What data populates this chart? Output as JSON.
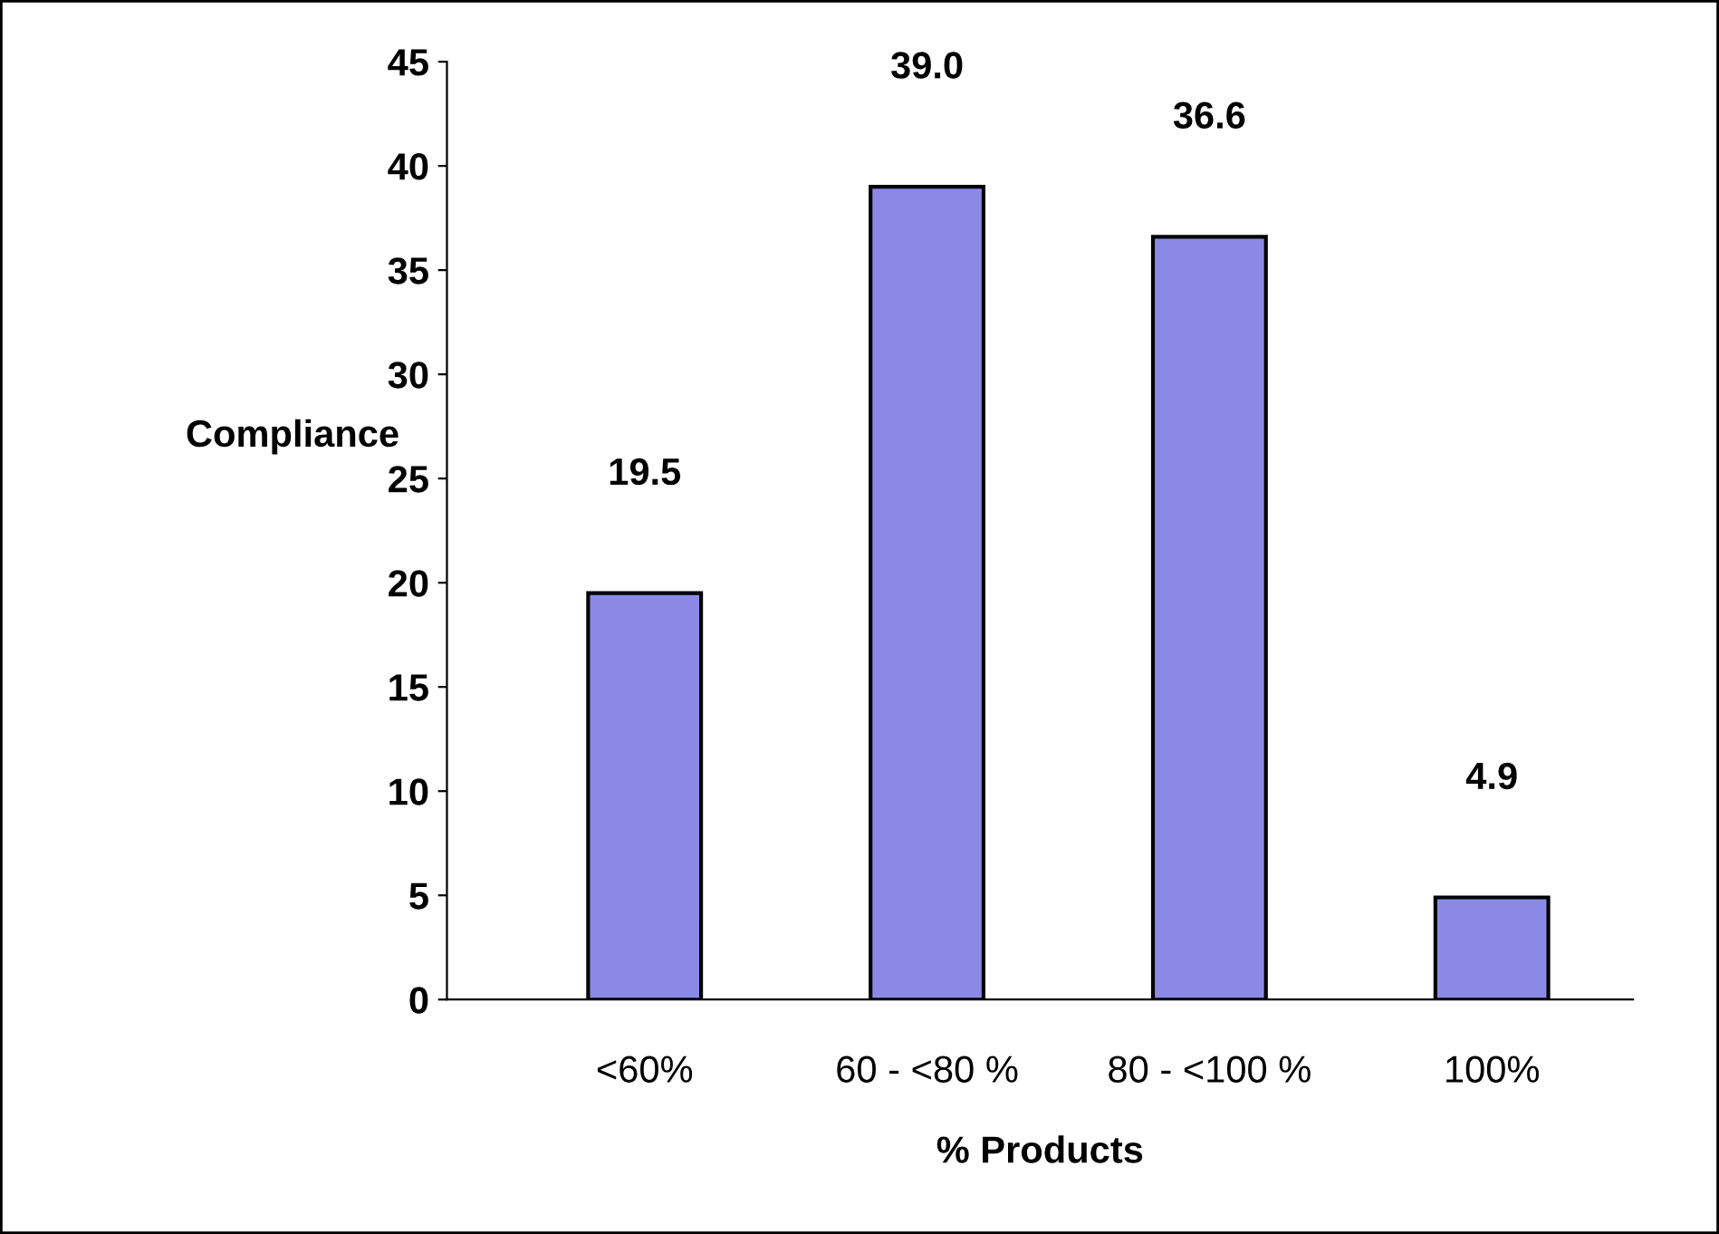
{
  "chart_data": {
    "type": "bar",
    "xlabel": "% Products",
    "ylabel": "Compliance",
    "categories": [
      "<60%",
      "60 - <80 %",
      "80 - <100 %",
      "100%"
    ],
    "values": [
      19.5,
      39.0,
      36.6,
      4.9
    ],
    "value_labels": [
      "19.5",
      "39.0",
      "36.6",
      "4.9"
    ],
    "color": "#8a8ae6",
    "ylim": [
      0,
      45
    ],
    "yticks": [
      0,
      5,
      10,
      15,
      20,
      25,
      30,
      35,
      40,
      45
    ],
    "grid": false,
    "legend": false
  }
}
